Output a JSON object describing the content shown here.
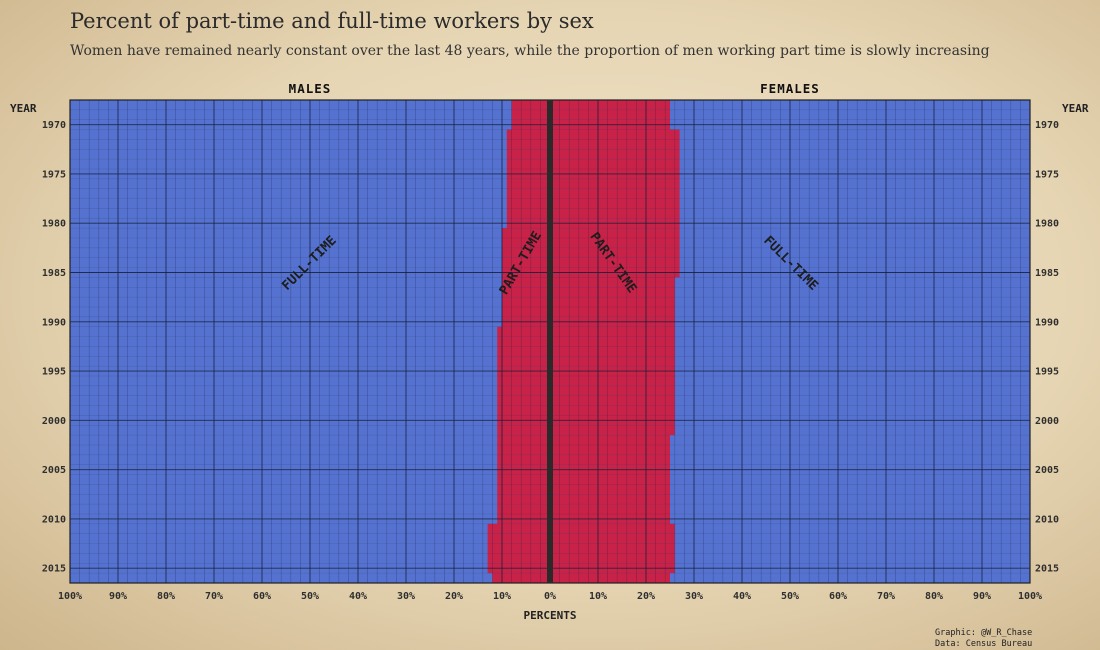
{
  "title": "Percent of part-time and full-time workers by sex",
  "subtitle": "Women have remained nearly constant over the last 48 years, while the proportion of men working part time is slowly increasing",
  "chart_data": {
    "type": "bar",
    "orientation": "horizontal-population-pyramid",
    "year_axis_label": "YEAR",
    "x_axis_label": "PERCENTS",
    "panels": [
      "MALES",
      "FEMALES"
    ],
    "segment_labels": {
      "full_time": "FULL-TIME",
      "part_time": "PART-TIME"
    },
    "years": [
      1968,
      1969,
      1970,
      1971,
      1972,
      1973,
      1974,
      1975,
      1976,
      1977,
      1978,
      1979,
      1980,
      1981,
      1982,
      1983,
      1984,
      1985,
      1986,
      1987,
      1988,
      1989,
      1990,
      1991,
      1992,
      1993,
      1994,
      1995,
      1996,
      1997,
      1998,
      1999,
      2000,
      2001,
      2002,
      2003,
      2004,
      2005,
      2006,
      2007,
      2008,
      2009,
      2010,
      2011,
      2012,
      2013,
      2014,
      2015,
      2016
    ],
    "year_ticks": [
      1970,
      1975,
      1980,
      1985,
      1990,
      1995,
      2000,
      2005,
      2010,
      2015
    ],
    "x_ticks": [
      "100%",
      "90%",
      "80%",
      "70%",
      "60%",
      "50%",
      "40%",
      "30%",
      "20%",
      "10%",
      "0%",
      "10%",
      "20%",
      "30%",
      "40%",
      "50%",
      "60%",
      "70%",
      "80%",
      "90%",
      "100%"
    ],
    "x_range": [
      -100,
      100
    ],
    "series": [
      {
        "name": "MALES",
        "part_time_percent": [
          8.0,
          8.0,
          8.0,
          9.0,
          9.0,
          9.0,
          9.0,
          9.0,
          9.0,
          9.0,
          9.0,
          9.0,
          9.0,
          10.0,
          10.0,
          10.0,
          10.0,
          10.0,
          10.0,
          10.0,
          10.0,
          10.0,
          10.0,
          11.0,
          11.0,
          11.0,
          11.0,
          11.0,
          11.0,
          11.0,
          11.0,
          11.0,
          11.0,
          11.0,
          11.0,
          11.0,
          11.0,
          11.0,
          11.0,
          11.0,
          11.0,
          11.0,
          11.0,
          13.0,
          13.0,
          13.0,
          13.0,
          13.0,
          12.0
        ]
      },
      {
        "name": "FEMALES",
        "part_time_percent": [
          25.0,
          25.0,
          25.0,
          27.0,
          27.0,
          27.0,
          27.0,
          27.0,
          27.0,
          27.0,
          27.0,
          27.0,
          27.0,
          27.0,
          27.0,
          27.0,
          27.0,
          27.0,
          26.0,
          26.0,
          26.0,
          26.0,
          26.0,
          26.0,
          26.0,
          26.0,
          26.0,
          26.0,
          26.0,
          26.0,
          26.0,
          26.0,
          26.0,
          26.0,
          25.0,
          25.0,
          25.0,
          25.0,
          25.0,
          25.0,
          25.0,
          25.0,
          25.0,
          26.0,
          26.0,
          26.0,
          26.0,
          26.0,
          25.0
        ]
      }
    ],
    "colors": {
      "full_time": "#5572d0",
      "part_time": "#c92248",
      "axis": "#1f1f1f",
      "text": "#2f2f2f"
    },
    "grid": true
  },
  "credits": {
    "graphic": "Graphic: @W_R_Chase",
    "data": "Data: Census Bureau"
  }
}
